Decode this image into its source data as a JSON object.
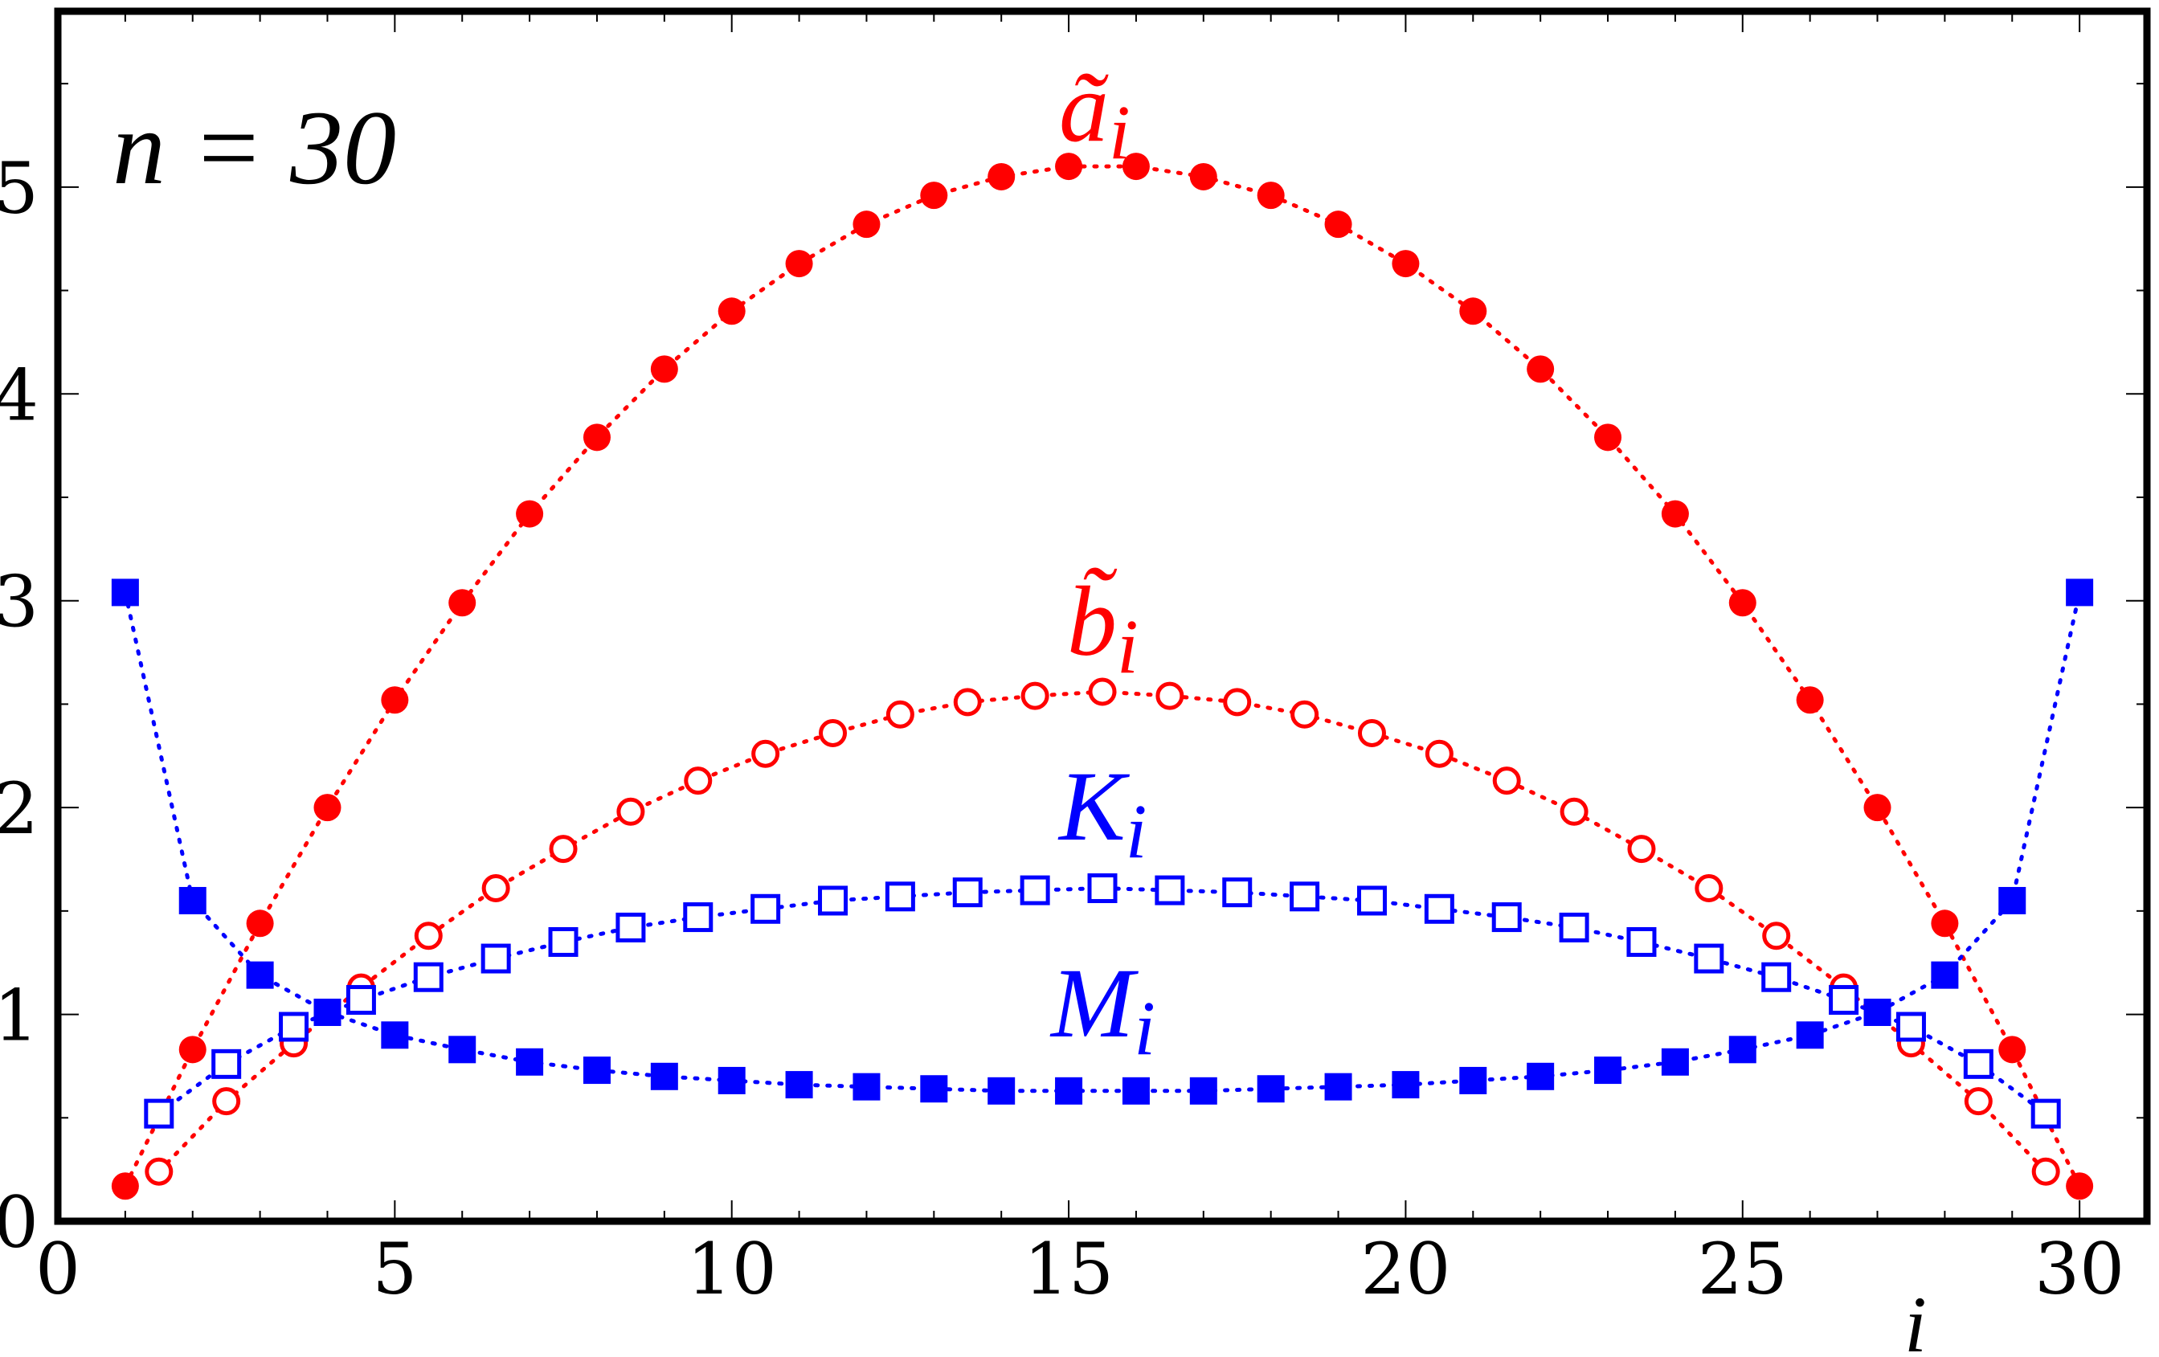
{
  "chart_data": {
    "type": "scatter",
    "title": "",
    "xlabel": "i",
    "ylabel": "",
    "xlim": [
      0,
      31
    ],
    "ylim": [
      0,
      5.85
    ],
    "xticks": [
      0,
      5,
      10,
      15,
      20,
      25,
      30
    ],
    "xtick_labels": [
      "0",
      "5",
      "10",
      "15",
      "20",
      "25",
      "30"
    ],
    "yticks": [
      0,
      1,
      2,
      3,
      4,
      5
    ],
    "ytick_labels": [
      "0",
      "1",
      "2",
      "3",
      "4",
      "5"
    ],
    "yminor_step": 0.5,
    "grid": false,
    "legend": "none",
    "annotation": "n = 30",
    "series": [
      {
        "name": "ã_i",
        "marker": "filled-circle",
        "color": "#ff0000",
        "x": [
          1,
          2,
          3,
          4,
          5,
          6,
          7,
          8,
          9,
          10,
          11,
          12,
          13,
          14,
          15,
          16,
          17,
          18,
          19,
          20,
          21,
          22,
          23,
          24,
          25,
          26,
          27,
          28,
          29,
          30
        ],
        "y": [
          0.17,
          0.83,
          1.44,
          2.0,
          2.52,
          2.99,
          3.42,
          3.79,
          4.12,
          4.4,
          4.63,
          4.82,
          4.96,
          5.05,
          5.1,
          5.1,
          5.05,
          4.96,
          4.82,
          4.63,
          4.4,
          4.12,
          3.79,
          3.42,
          2.99,
          2.52,
          2.0,
          1.44,
          0.83,
          0.17
        ]
      },
      {
        "name": "b̃_i",
        "marker": "open-circle",
        "color": "#ff0000",
        "x": [
          1.5,
          2.5,
          3.5,
          4.5,
          5.5,
          6.5,
          7.5,
          8.5,
          9.5,
          10.5,
          11.5,
          12.5,
          13.5,
          14.5,
          15.5,
          16.5,
          17.5,
          18.5,
          19.5,
          20.5,
          21.5,
          22.5,
          23.5,
          24.5,
          25.5,
          26.5,
          27.5,
          28.5,
          29.5
        ],
        "y": [
          0.24,
          0.58,
          0.86,
          1.13,
          1.38,
          1.61,
          1.8,
          1.98,
          2.13,
          2.26,
          2.36,
          2.45,
          2.51,
          2.54,
          2.56,
          2.54,
          2.51,
          2.45,
          2.36,
          2.26,
          2.13,
          1.98,
          1.8,
          1.61,
          1.38,
          1.13,
          0.86,
          0.58,
          0.24
        ]
      },
      {
        "name": "K_i",
        "marker": "open-square",
        "color": "#0000ff",
        "x": [
          1.5,
          2.5,
          3.5,
          4.5,
          5.5,
          6.5,
          7.5,
          8.5,
          9.5,
          10.5,
          11.5,
          12.5,
          13.5,
          14.5,
          15.5,
          16.5,
          17.5,
          18.5,
          19.5,
          20.5,
          21.5,
          22.5,
          23.5,
          24.5,
          25.5,
          26.5,
          27.5,
          28.5,
          29.5
        ],
        "y": [
          0.52,
          0.76,
          0.94,
          1.07,
          1.18,
          1.27,
          1.35,
          1.42,
          1.47,
          1.51,
          1.55,
          1.57,
          1.59,
          1.6,
          1.61,
          1.6,
          1.59,
          1.57,
          1.55,
          1.51,
          1.47,
          1.42,
          1.35,
          1.27,
          1.18,
          1.07,
          0.94,
          0.76,
          0.52
        ]
      },
      {
        "name": "M_i",
        "marker": "filled-square",
        "color": "#0000ff",
        "x": [
          1,
          2,
          3,
          4,
          5,
          6,
          7,
          8,
          9,
          10,
          11,
          12,
          13,
          14,
          15,
          16,
          17,
          18,
          19,
          20,
          21,
          22,
          23,
          24,
          25,
          26,
          27,
          28,
          29,
          30
        ],
        "y": [
          3.04,
          1.55,
          1.19,
          1.01,
          0.9,
          0.83,
          0.77,
          0.73,
          0.7,
          0.68,
          0.66,
          0.65,
          0.64,
          0.63,
          0.63,
          0.63,
          0.63,
          0.64,
          0.65,
          0.66,
          0.68,
          0.7,
          0.73,
          0.77,
          0.83,
          0.9,
          1.01,
          1.19,
          1.55,
          3.04
        ]
      }
    ]
  }
}
